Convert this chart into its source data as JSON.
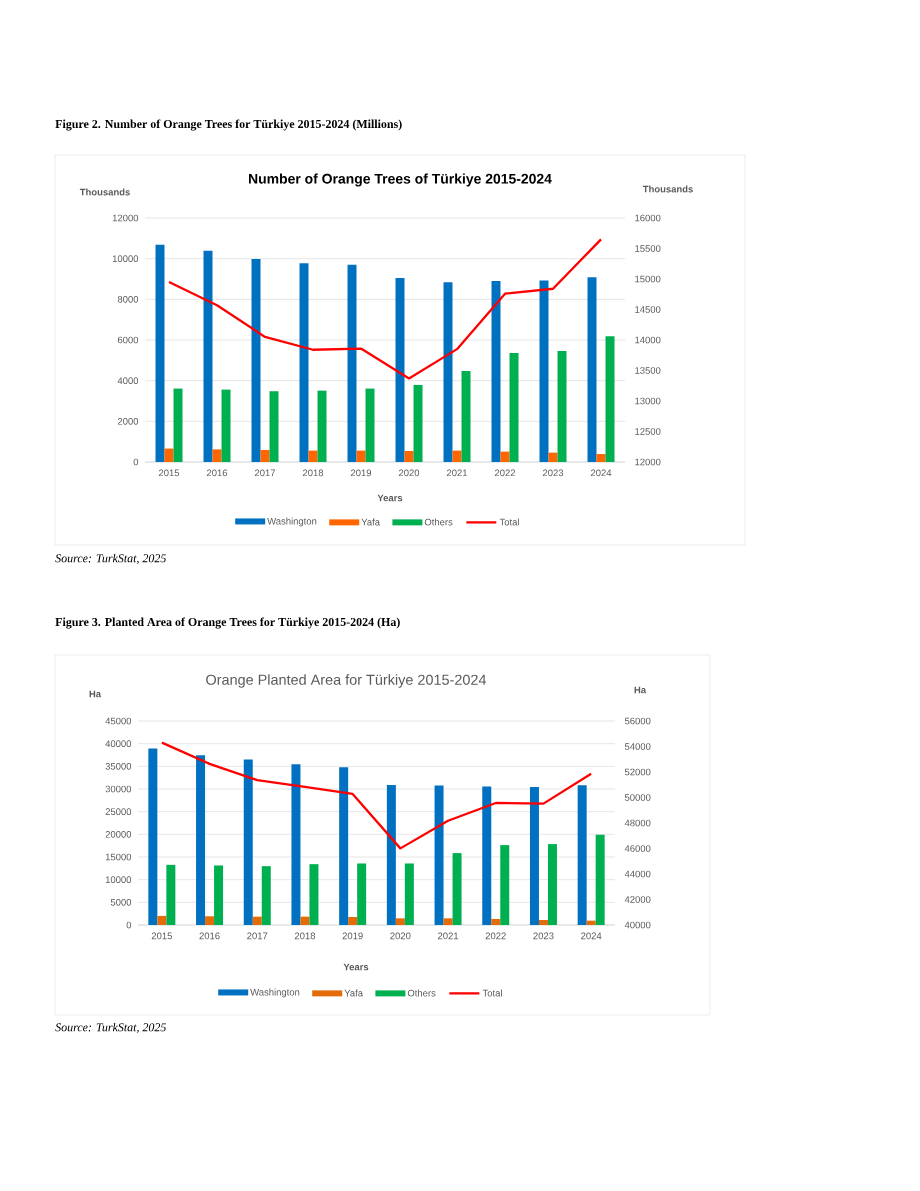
{
  "chart_data": [
    {
      "type": "bar",
      "title": "Number of Orange Trees of Türkiye 2015-2024",
      "xlabel": "Years",
      "ylabel": "Thousands",
      "y2label": "Thousands",
      "categories": [
        "2015",
        "2016",
        "2017",
        "2018",
        "2019",
        "2020",
        "2021",
        "2022",
        "2023",
        "2024"
      ],
      "series": [
        {
          "name": "Washington",
          "color": "#0070c0",
          "values": [
            10690,
            10390,
            9980,
            9770,
            9700,
            9050,
            8840,
            8900,
            8920,
            9080
          ]
        },
        {
          "name": "Yafa",
          "color": "#ff6600",
          "values": [
            660,
            620,
            590,
            560,
            560,
            540,
            560,
            510,
            460,
            390
          ]
        },
        {
          "name": "Others",
          "color": "#00b050",
          "values": [
            3610,
            3560,
            3480,
            3510,
            3610,
            3790,
            4480,
            5360,
            5460,
            6180
          ]
        },
        {
          "name": "Total",
          "type": "line",
          "axis": "y2",
          "color": "#ff0000",
          "values": [
            14950,
            14570,
            14050,
            13840,
            13860,
            13370,
            13850,
            14760,
            14840,
            15650
          ]
        }
      ],
      "ylim": [
        0,
        12000
      ],
      "yticks": [
        0,
        2000,
        4000,
        6000,
        8000,
        10000,
        12000
      ],
      "y2lim": [
        12000,
        16000
      ],
      "y2ticks": [
        12000,
        12500,
        13000,
        13500,
        14000,
        14500,
        15000,
        15500,
        16000
      ],
      "grid": "y",
      "legend": "bottom",
      "annotations": [
        "Figure 2. Number of Orange Trees for Türkiye 2015-2024 (Millions)",
        "Source: TurkStat, 2025"
      ]
    },
    {
      "type": "bar",
      "title": "Orange Planted Area for Türkiye 2015-2024",
      "xlabel": "Years",
      "ylabel": "Ha",
      "y2label": "Ha",
      "categories": [
        "2015",
        "2016",
        "2017",
        "2018",
        "2019",
        "2020",
        "2021",
        "2022",
        "2023",
        "2024"
      ],
      "series": [
        {
          "name": "Washington",
          "color": "#0070c0",
          "values": [
            38940,
            37470,
            36500,
            35470,
            34800,
            30900,
            30750,
            30530,
            30460,
            30830
          ]
        },
        {
          "name": "Yafa",
          "color": "#e36c09",
          "values": [
            2000,
            1920,
            1840,
            1840,
            1770,
            1470,
            1470,
            1330,
            1100,
            960
          ]
        },
        {
          "name": "Others",
          "color": "#00b050",
          "values": [
            13270,
            13130,
            12980,
            13420,
            13570,
            13570,
            15860,
            17620,
            17850,
            19910
          ]
        },
        {
          "name": "Total",
          "type": "line",
          "axis": "y2",
          "color": "#ff0000",
          "values": [
            54300,
            52640,
            51360,
            50830,
            50280,
            46010,
            48180,
            49570,
            49520,
            51860
          ]
        }
      ],
      "ylim": [
        0,
        45000
      ],
      "yticks": [
        0,
        5000,
        10000,
        15000,
        20000,
        25000,
        30000,
        35000,
        40000,
        45000
      ],
      "y2lim": [
        40000,
        56000
      ],
      "y2ticks": [
        40000,
        42000,
        44000,
        46000,
        48000,
        50000,
        52000,
        54000,
        56000
      ],
      "grid": "y",
      "legend": "bottom",
      "annotations": [
        "Figure 3. Planted Area of Orange Trees for Türkiye 2015-2024 (Ha)",
        "Source: TurkStat, 2025"
      ]
    }
  ]
}
